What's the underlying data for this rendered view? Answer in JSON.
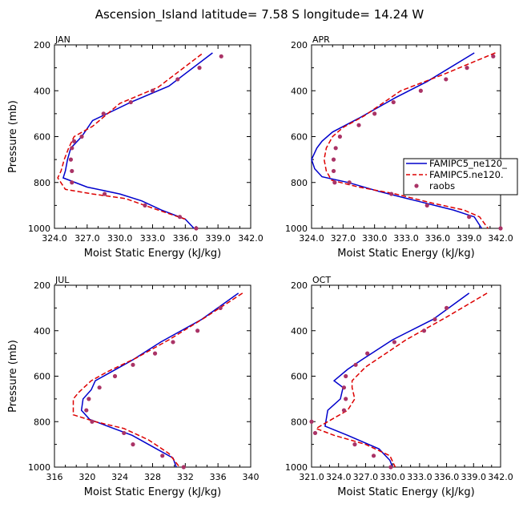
{
  "figure_title": "Ascension_Island  latitude= 7.58 S longitude= 14.24 W",
  "legend": {
    "entries": [
      "FAMIPC5_ne120_",
      "FAMIPC5.ne120.",
      "raobs"
    ]
  },
  "colors": {
    "model1": "#0000cc",
    "model2": "#dd0000",
    "obs": "#aa3366",
    "axis": "#000000"
  },
  "chart_data": [
    {
      "type": "line",
      "panel": "JAN",
      "xlabel": "Moist Static Energy (kJ/kg)",
      "ylabel": "Pressure (mb)",
      "xlim": [
        324,
        342
      ],
      "ylim": [
        1000,
        200
      ],
      "y_reversed": true,
      "xticks": [
        "324.0",
        "327.0",
        "330.0",
        "333.0",
        "336.0",
        "339.0",
        "342.0"
      ],
      "yticks": [
        "200",
        "400",
        "600",
        "800",
        "1000"
      ],
      "series": [
        {
          "name": "FAMIPC5_ne120_",
          "style": "solid",
          "x": [
            338.5,
            334.5,
            331.0,
            327.5,
            326.5,
            325.5,
            325.2,
            325.0,
            324.8,
            327.0,
            330.0,
            332.0,
            333.8,
            336.0,
            336.8
          ],
          "y": [
            235,
            380,
            450,
            530,
            600,
            650,
            700,
            750,
            780,
            820,
            850,
            880,
            920,
            960,
            1000
          ]
        },
        {
          "name": "FAMIPC5.ne120.",
          "style": "dashed",
          "x": [
            337.5,
            333.5,
            330.0,
            327.5,
            325.8,
            325.3,
            324.9,
            324.6,
            324.3,
            325.0,
            327.5,
            330.5,
            333.5,
            336.0
          ],
          "y": [
            240,
            385,
            455,
            555,
            600,
            650,
            700,
            750,
            780,
            830,
            850,
            870,
            920,
            960
          ]
        },
        {
          "name": "raobs",
          "style": "markers",
          "x": [
            339.3,
            337.3,
            335.3,
            333.0,
            331.0,
            328.5,
            326.5,
            325.8,
            325.6,
            325.5,
            325.6,
            325.6,
            328.6,
            332.3,
            335.5,
            337.0
          ],
          "y": [
            250,
            300,
            350,
            400,
            450,
            500,
            600,
            620,
            650,
            700,
            750,
            800,
            850,
            900,
            950,
            1000
          ]
        }
      ]
    },
    {
      "type": "line",
      "panel": "APR",
      "xlabel": "Moist Static Energy (kJ/kg)",
      "ylabel": "Pressure (mb)",
      "xlim": [
        324,
        342
      ],
      "ylim": [
        1000,
        200
      ],
      "y_reversed": true,
      "xticks": [
        "324.0",
        "327.0",
        "330.0",
        "333.0",
        "336.0",
        "339.0",
        "342.0"
      ],
      "yticks": [
        "200",
        "400",
        "600",
        "800",
        "1000"
      ],
      "series": [
        {
          "name": "FAMIPC5_ne120_",
          "style": "solid",
          "x": [
            339.5,
            335.0,
            332.0,
            328.5,
            326.0,
            325.0,
            324.5,
            324.0,
            324.3,
            325.0,
            327.5,
            330.5,
            334.0,
            337.5,
            339.5,
            340.2
          ],
          "y": [
            235,
            360,
            430,
            520,
            580,
            620,
            650,
            700,
            740,
            775,
            800,
            840,
            880,
            920,
            950,
            1000
          ]
        },
        {
          "name": "FAMIPC5.ne120.",
          "style": "dashed",
          "x": [
            341.5,
            336.5,
            332.5,
            329.0,
            327.0,
            326.0,
            325.4,
            325.2,
            325.4,
            325.9,
            328.5,
            332.0,
            335.5,
            338.5,
            340.0,
            340.8
          ],
          "y": [
            235,
            330,
            400,
            510,
            560,
            600,
            650,
            700,
            750,
            790,
            820,
            850,
            890,
            920,
            950,
            1000
          ]
        },
        {
          "name": "raobs",
          "style": "markers",
          "x": [
            341.3,
            338.8,
            336.8,
            334.4,
            331.8,
            330.0,
            328.5,
            326.7,
            326.3,
            326.1,
            326.1,
            326.2,
            327.6,
            331.6,
            335.0,
            339.0,
            342.0
          ],
          "y": [
            250,
            300,
            350,
            400,
            450,
            500,
            550,
            600,
            650,
            700,
            750,
            800,
            800,
            850,
            900,
            950,
            1000
          ]
        }
      ]
    },
    {
      "type": "line",
      "panel": "JUL",
      "xlabel": "Moist Static Energy (kJ/kg)",
      "ylabel": "Pressure (mb)",
      "xlim": [
        316,
        340
      ],
      "ylim": [
        1000,
        200
      ],
      "y_reversed": true,
      "xticks": [
        "316",
        "320",
        "324",
        "328",
        "332",
        "336",
        "340"
      ],
      "yticks": [
        "200",
        "400",
        "600",
        "800",
        "1000"
      ],
      "series": [
        {
          "name": "FAMIPC5_ne120_",
          "style": "solid",
          "x": [
            338.5,
            334.0,
            329.0,
            325.5,
            323.0,
            321.0,
            320.5,
            319.5,
            319.3,
            320.3,
            322.5,
            325.5,
            328.5,
            330.5,
            330.9
          ],
          "y": [
            235,
            350,
            450,
            530,
            580,
            620,
            660,
            700,
            750,
            790,
            820,
            860,
            920,
            960,
            1000
          ]
        },
        {
          "name": "FAMIPC5.ne120.",
          "style": "dashed",
          "x": [
            339.0,
            334.5,
            330.0,
            326.0,
            322.5,
            320.5,
            319.0,
            318.3,
            318.3,
            321.0,
            324.5,
            327.5,
            330.0,
            331.3
          ],
          "y": [
            235,
            340,
            440,
            520,
            580,
            620,
            670,
            700,
            770,
            800,
            830,
            880,
            940,
            1000
          ]
        },
        {
          "name": "raobs",
          "style": "markers",
          "x": [
            336.3,
            333.5,
            330.5,
            328.3,
            325.6,
            323.4,
            321.5,
            320.2,
            319.9,
            320.6,
            324.5,
            325.6,
            329.2,
            331.8
          ],
          "y": [
            300,
            400,
            450,
            500,
            550,
            600,
            650,
            700,
            750,
            800,
            850,
            900,
            950,
            1000
          ]
        }
      ]
    },
    {
      "type": "line",
      "panel": "OCT",
      "xlabel": "Moist Static Energy (kJ/kg)",
      "ylabel": "Pressure (mb)",
      "xlim": [
        321,
        342
      ],
      "ylim": [
        1000,
        200
      ],
      "y_reversed": true,
      "xticks": [
        "321.0",
        "324.0",
        "327.0",
        "330.0",
        "333.0",
        "336.0",
        "339.0",
        "342.0"
      ],
      "yticks": [
        "200",
        "400",
        "600",
        "800",
        "1000"
      ],
      "series": [
        {
          "name": "FAMIPC5_ne120_",
          "style": "solid",
          "x": [
            338.5,
            334.5,
            330.0,
            326.5,
            325.0,
            323.5,
            324.5,
            324.2,
            322.8,
            322.5,
            325.0,
            328.5,
            329.7,
            330.0
          ],
          "y": [
            235,
            350,
            440,
            530,
            570,
            620,
            650,
            700,
            750,
            820,
            860,
            920,
            970,
            1000
          ]
        },
        {
          "name": "FAMIPC5.ne120.",
          "style": "dashed",
          "x": [
            340.5,
            336.0,
            331.5,
            328.5,
            327.0,
            325.5,
            325.5,
            325.8,
            325.0,
            322.8,
            321.5,
            323.5,
            327.0,
            329.7,
            330.3
          ],
          "y": [
            235,
            340,
            440,
            520,
            560,
            620,
            650,
            700,
            750,
            800,
            830,
            860,
            900,
            950,
            1000
          ]
        },
        {
          "name": "raobs",
          "style": "markers",
          "x": [
            336.0,
            334.7,
            333.5,
            330.2,
            327.2,
            325.9,
            324.8,
            324.6,
            324.8,
            324.6,
            321.0,
            321.4,
            325.8,
            327.9,
            329.8
          ],
          "y": [
            300,
            350,
            400,
            450,
            500,
            550,
            600,
            650,
            700,
            750,
            800,
            850,
            900,
            950,
            1000
          ]
        }
      ]
    }
  ]
}
